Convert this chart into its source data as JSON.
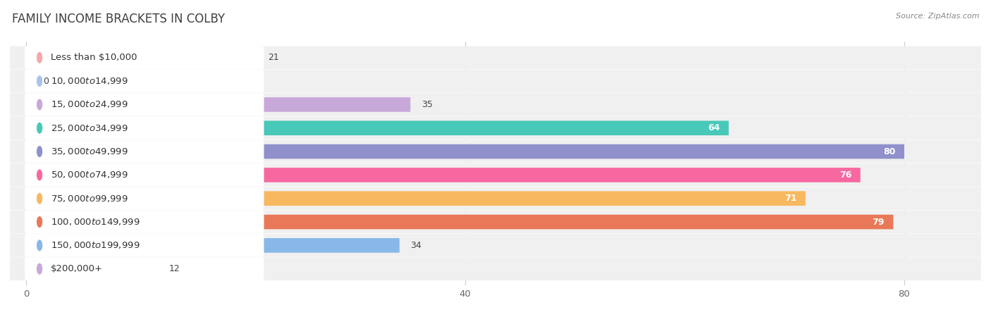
{
  "title": "FAMILY INCOME BRACKETS IN COLBY",
  "source": "Source: ZipAtlas.com",
  "categories": [
    "Less than $10,000",
    "$10,000 to $14,999",
    "$15,000 to $24,999",
    "$25,000 to $34,999",
    "$35,000 to $49,999",
    "$50,000 to $74,999",
    "$75,000 to $99,999",
    "$100,000 to $149,999",
    "$150,000 to $199,999",
    "$200,000+"
  ],
  "values": [
    21,
    0,
    35,
    64,
    80,
    76,
    71,
    79,
    34,
    12
  ],
  "bar_colors": [
    "#F2A8A8",
    "#A8C4EC",
    "#C8A8D8",
    "#48C8B8",
    "#9090CC",
    "#F868A0",
    "#F8B860",
    "#E87858",
    "#88B8E8",
    "#C8A8D8"
  ],
  "xlim": [
    -1.5,
    87
  ],
  "xticks": [
    0,
    40,
    80
  ],
  "background_color": "#ffffff",
  "row_bg_color": "#f0f0f0",
  "label_bg_color": "#ffffff",
  "title_fontsize": 12,
  "label_fontsize": 9.5,
  "value_fontsize": 9
}
